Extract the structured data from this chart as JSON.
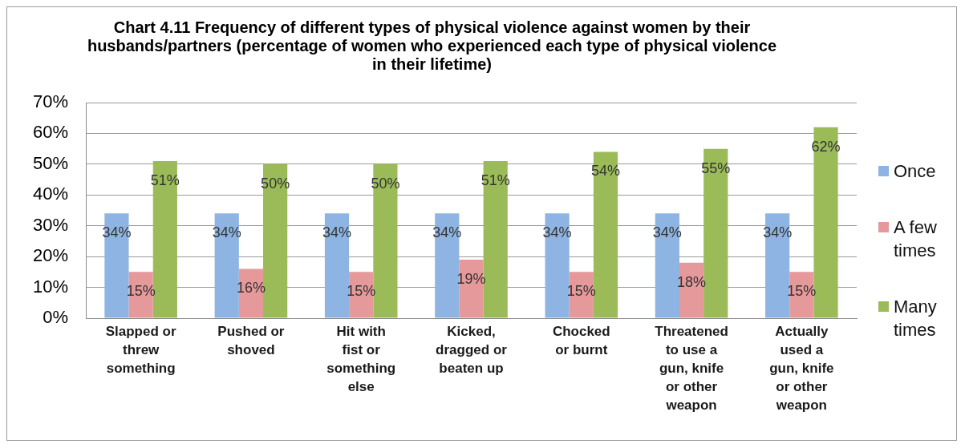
{
  "chart_data": {
    "type": "bar",
    "title": "Chart 4.11 Frequency of different types of physical violence against women by their husbands/partners (percentage of women who experienced each type of physical violence in their lifetime)",
    "categories": [
      "Slapped or threw something",
      "Pushed or shoved",
      "Hit with fist or something else",
      "Kicked, dragged or beaten up",
      "Chocked or burnt",
      "Threatened to use a gun, knife or other weapon",
      "Actually used a gun, knife or other weapon"
    ],
    "series": [
      {
        "name": "Once",
        "color": "#8db4e2",
        "values": [
          34,
          34,
          34,
          34,
          34,
          34,
          34
        ],
        "value_labels": [
          "34%",
          "34%",
          "34%",
          "34%",
          "34%",
          "34%",
          "34%"
        ]
      },
      {
        "name": "A few times",
        "color": "#e6999b",
        "values": [
          15,
          16,
          15,
          19,
          15,
          18,
          15
        ],
        "value_labels": [
          "15%",
          "16%",
          "15%",
          "19%",
          "15%",
          "18%",
          "15%"
        ]
      },
      {
        "name": "Many times",
        "color": "#9bbb59",
        "values": [
          51,
          50,
          50,
          51,
          54,
          55,
          62
        ],
        "value_labels": [
          "51%",
          "50%",
          "50%",
          "51%",
          "54%",
          "55%",
          "62%"
        ]
      }
    ],
    "ylim": [
      0,
      70
    ],
    "yticks": [
      {
        "value": 0,
        "label": "0%"
      },
      {
        "value": 10,
        "label": "10%"
      },
      {
        "value": 20,
        "label": "20%"
      },
      {
        "value": 30,
        "label": "30%"
      },
      {
        "value": 40,
        "label": "40%"
      },
      {
        "value": 50,
        "label": "50%"
      },
      {
        "value": 60,
        "label": "60%"
      },
      {
        "value": 70,
        "label": "70%"
      }
    ],
    "grid": "y",
    "legend": "right"
  }
}
